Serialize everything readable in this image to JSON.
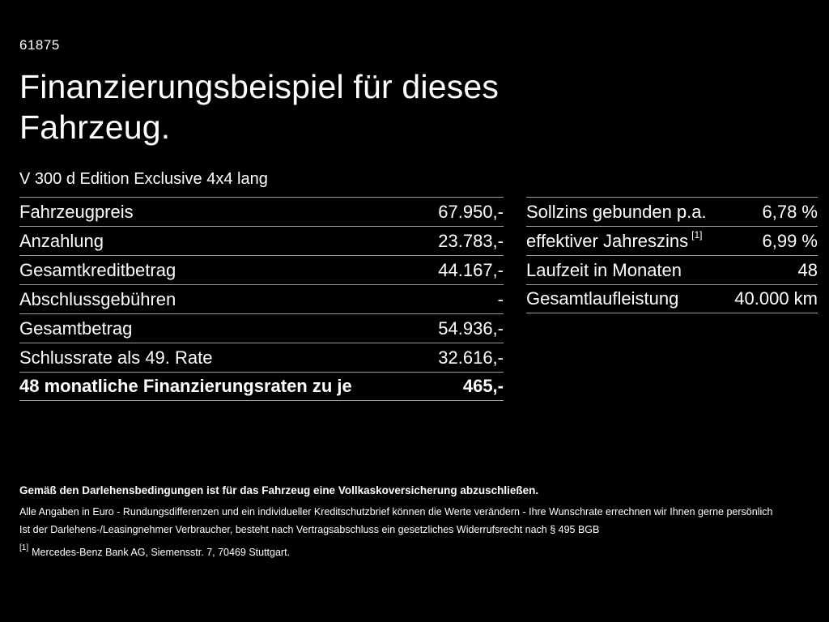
{
  "page": {
    "id": "61875",
    "title": "Finanzierungsbeispiel für dieses Fahrzeug.",
    "subtitle": "V 300 d Edition Exclusive 4x4 lang"
  },
  "financing_table": {
    "rows": [
      {
        "label": "Fahrzeugpreis",
        "value": "67.950,-"
      },
      {
        "label": "Anzahlung",
        "value": "23.783,-"
      },
      {
        "label": "Gesamtkreditbetrag",
        "value": "44.167,-"
      },
      {
        "label": "Abschlussgebühren",
        "value": "-"
      },
      {
        "label": "Gesamtbetrag",
        "value": "54.936,-"
      },
      {
        "label": "Schlussrate als 49. Rate",
        "value": "32.616,-"
      },
      {
        "label": "48 monatliche Finanzierungsraten zu je",
        "value": "465,-"
      }
    ]
  },
  "conditions_table": {
    "rows": [
      {
        "label": "Sollzins gebunden p.a.",
        "value": "6,78 %"
      },
      {
        "label": "effektiver Jahreszins",
        "footnote": "[1]",
        "value": "6,99 %"
      },
      {
        "label": "Laufzeit in Monaten",
        "value": "48"
      },
      {
        "label": "Gesamtlaufleistung",
        "value": "40.000 km"
      }
    ]
  },
  "footer": {
    "insurance_note": "Gemäß den Darlehensbedingungen ist für das Fahrzeug eine Vollkaskoversicherung abzuschließen.",
    "disclaimer1": "Alle Angaben in Euro - Rundungsdifferenzen und ein individueller Kreditschutzbrief können die Werte verändern - Ihre Wunschrate errechnen wir Ihnen gerne persönlich",
    "disclaimer2": "Ist der Darlehens-/Leasingnehmer Verbraucher, besteht nach Vertragsabschluss ein gesetzliches Widerrufsrecht nach § 495 BGB",
    "footnote_marker": "[1]",
    "footnote_text": "Mercedes-Benz Bank AG, Siemensstr. 7, 70469 Stuttgart."
  },
  "colors": {
    "background": "#000000",
    "text": "#ffffff",
    "divider": "#9b9b9b"
  }
}
